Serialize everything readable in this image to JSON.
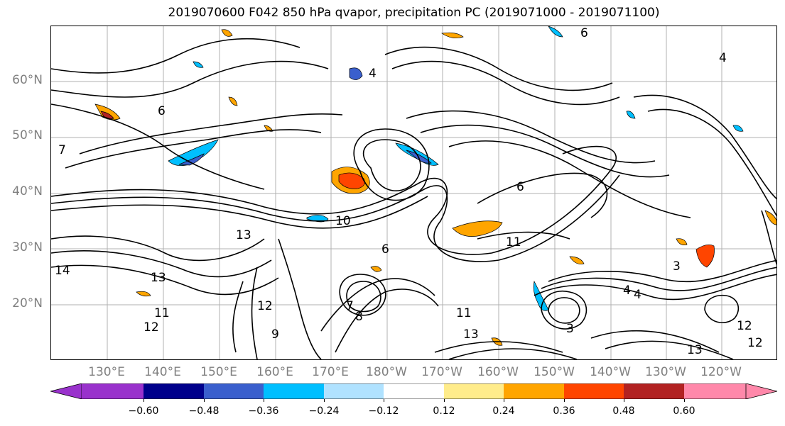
{
  "title": "2019070600 F042 850 hPa qvapor, precipitation PC (2019071000 - 2019071100)",
  "lat_labels": [
    "60°N",
    "50°N",
    "40°N",
    "30°N",
    "20°N"
  ],
  "lon_labels": [
    "130°E",
    "140°E",
    "150°E",
    "160°E",
    "170°E",
    "180°W",
    "170°W",
    "160°W",
    "150°W",
    "140°W",
    "130°W",
    "120°W"
  ],
  "contour_labels": [
    "4",
    "6",
    "6",
    "4",
    "7",
    "6",
    "10",
    "11",
    "13",
    "13",
    "14",
    "12",
    "11",
    "12",
    "7",
    "8",
    "9",
    "11",
    "13",
    "3",
    "4",
    "4",
    "3",
    "13",
    "12",
    "12",
    "6"
  ],
  "colorbar": {
    "ticks": [
      "−0.60",
      "−0.48",
      "−0.36",
      "−0.24",
      "−0.12",
      "0.12",
      "0.24",
      "0.36",
      "0.48",
      "0.60"
    ],
    "colors": [
      "#9932cc",
      "#00008b",
      "#3a5fcd",
      "#00bfff",
      "#b0e2ff",
      "#ffffff",
      "#ffec8b",
      "#ffa500",
      "#ff4500",
      "#b22222",
      "#ff88aa"
    ]
  },
  "chart_data": {
    "type": "heatmap",
    "title": "2019070600 F042 850 hPa qvapor, precipitation PC (2019071000 - 2019071100)",
    "xlabel": "",
    "ylabel": "",
    "x_ticks": [
      "130°E",
      "140°E",
      "150°E",
      "160°E",
      "170°E",
      "180°W",
      "170°W",
      "160°W",
      "150°W",
      "140°W",
      "130°W",
      "120°W"
    ],
    "y_ticks": [
      "60°N",
      "50°N",
      "40°N",
      "30°N",
      "20°N"
    ],
    "colorbar_levels": [
      -0.6,
      -0.48,
      -0.36,
      -0.24,
      -0.12,
      0.12,
      0.24,
      0.36,
      0.48,
      0.6
    ],
    "grid": true
  }
}
